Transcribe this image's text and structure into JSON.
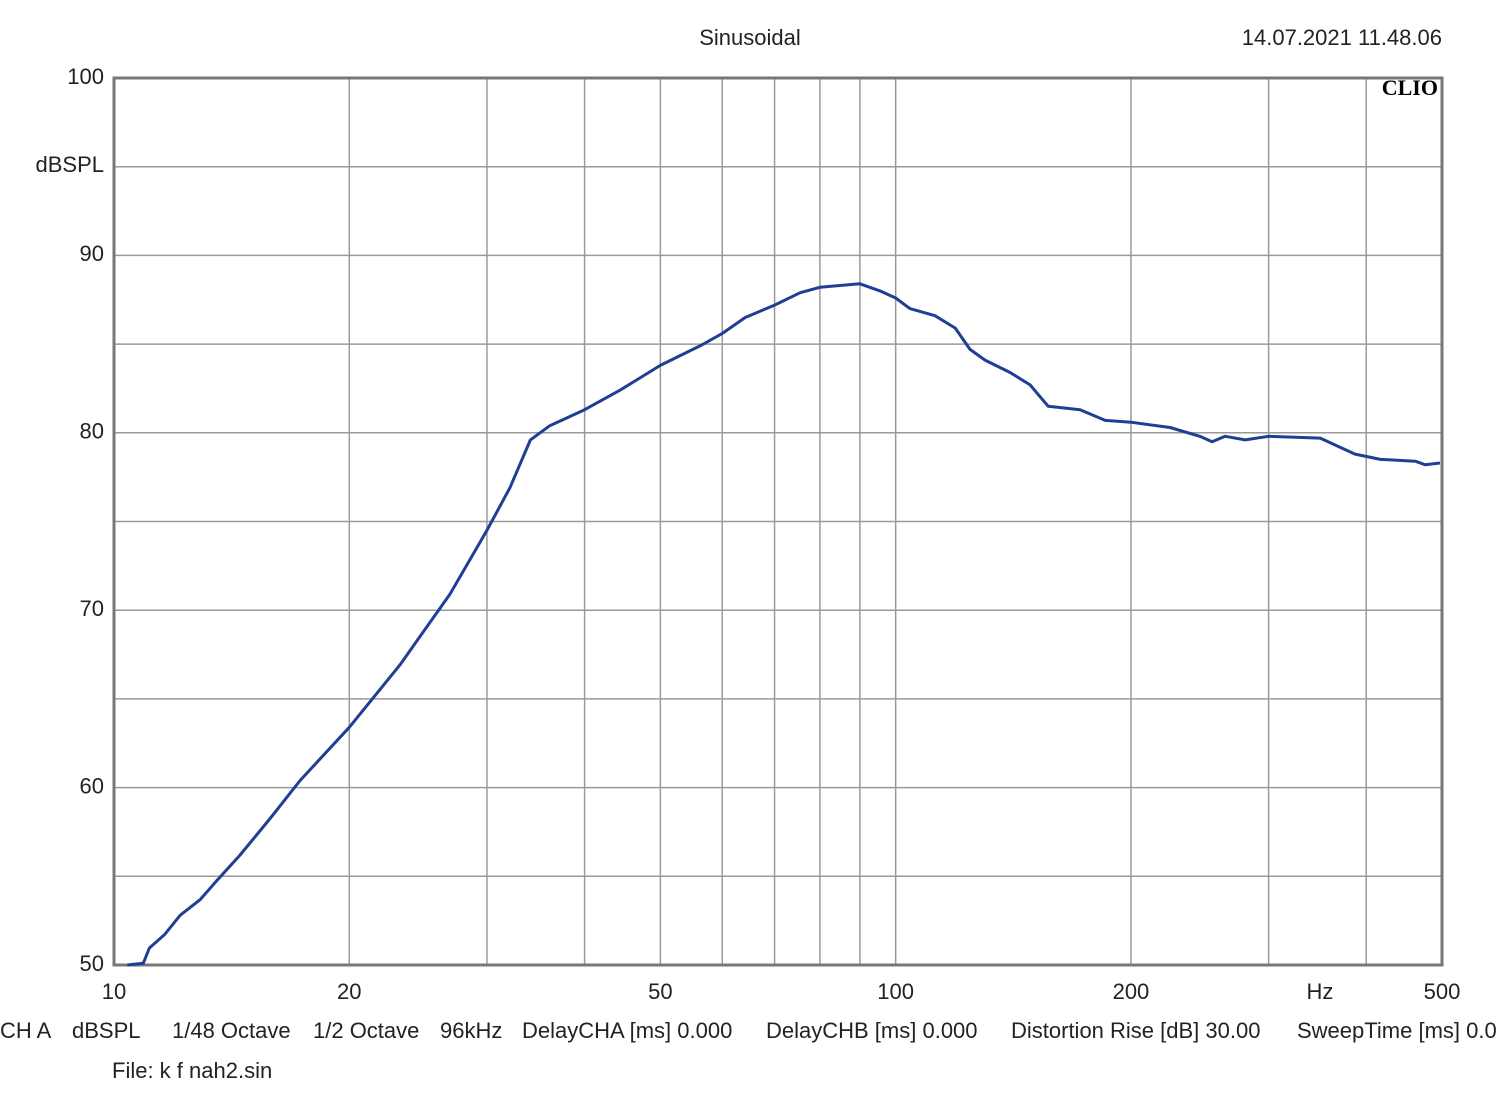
{
  "chart_data": {
    "type": "line",
    "title": "Sinusoidal",
    "timestamp": "14.07.2021 11.48.06",
    "logo": "CLIO",
    "x_label": "Hz",
    "y_label": "dBSPL",
    "log_x": true,
    "grid": true,
    "color": "#1f3f94",
    "xlim": [
      10,
      500
    ],
    "ylim": [
      50,
      100
    ],
    "xticks": [
      10,
      20,
      50,
      100,
      200,
      500
    ],
    "minor_xticks": [
      30,
      40,
      60,
      70,
      80,
      90,
      300,
      400
    ],
    "yticks": [
      50,
      60,
      70,
      80,
      90,
      100
    ],
    "minor_yticks": [
      55,
      65,
      75,
      85,
      95
    ],
    "x": [
      10.4,
      10.9,
      11.1,
      11.6,
      12.15,
      12.9,
      13.5,
      14.5,
      15.8,
      17.3,
      20,
      23.2,
      26.9,
      30,
      32.1,
      34.1,
      36.1,
      40,
      44.4,
      50,
      56.2,
      60,
      64.2,
      70,
      75.5,
      80,
      90,
      95.5,
      100,
      104.3,
      112.3,
      119.2,
      124.5,
      130.1,
      140.1,
      148.6,
      156.7,
      172.2,
      185.4,
      200,
      224.4,
      245,
      254,
      264,
      280,
      300,
      349.3,
      387,
      417,
      462,
      475.7,
      497
    ],
    "values": [
      50.0,
      50.1,
      50.96,
      51.7,
      52.8,
      53.7,
      54.7,
      56.2,
      58.2,
      60.4,
      63.4,
      66.9,
      70.9,
      74.5,
      76.9,
      79.6,
      80.4,
      81.3,
      82.4,
      83.8,
      84.9,
      85.6,
      86.5,
      87.2,
      87.9,
      88.2,
      88.4,
      88.0,
      87.6,
      87.0,
      86.6,
      85.9,
      84.7,
      84.1,
      83.4,
      82.7,
      81.5,
      81.3,
      80.7,
      80.6,
      80.3,
      79.8,
      79.5,
      79.8,
      79.6,
      79.8,
      79.7,
      78.8,
      78.5,
      78.4,
      78.2,
      78.3
    ]
  },
  "footer": {
    "settings": [
      "CH A",
      "dBSPL",
      "1/48 Octave",
      "1/2 Octave",
      "96kHz",
      "DelayCHA [ms] 0.000",
      "DelayCHB [ms] 0.000",
      "Distortion Rise [dB] 30.00",
      "SweepTime [ms] 0.0"
    ],
    "file": "File: k f nah2.sin"
  }
}
